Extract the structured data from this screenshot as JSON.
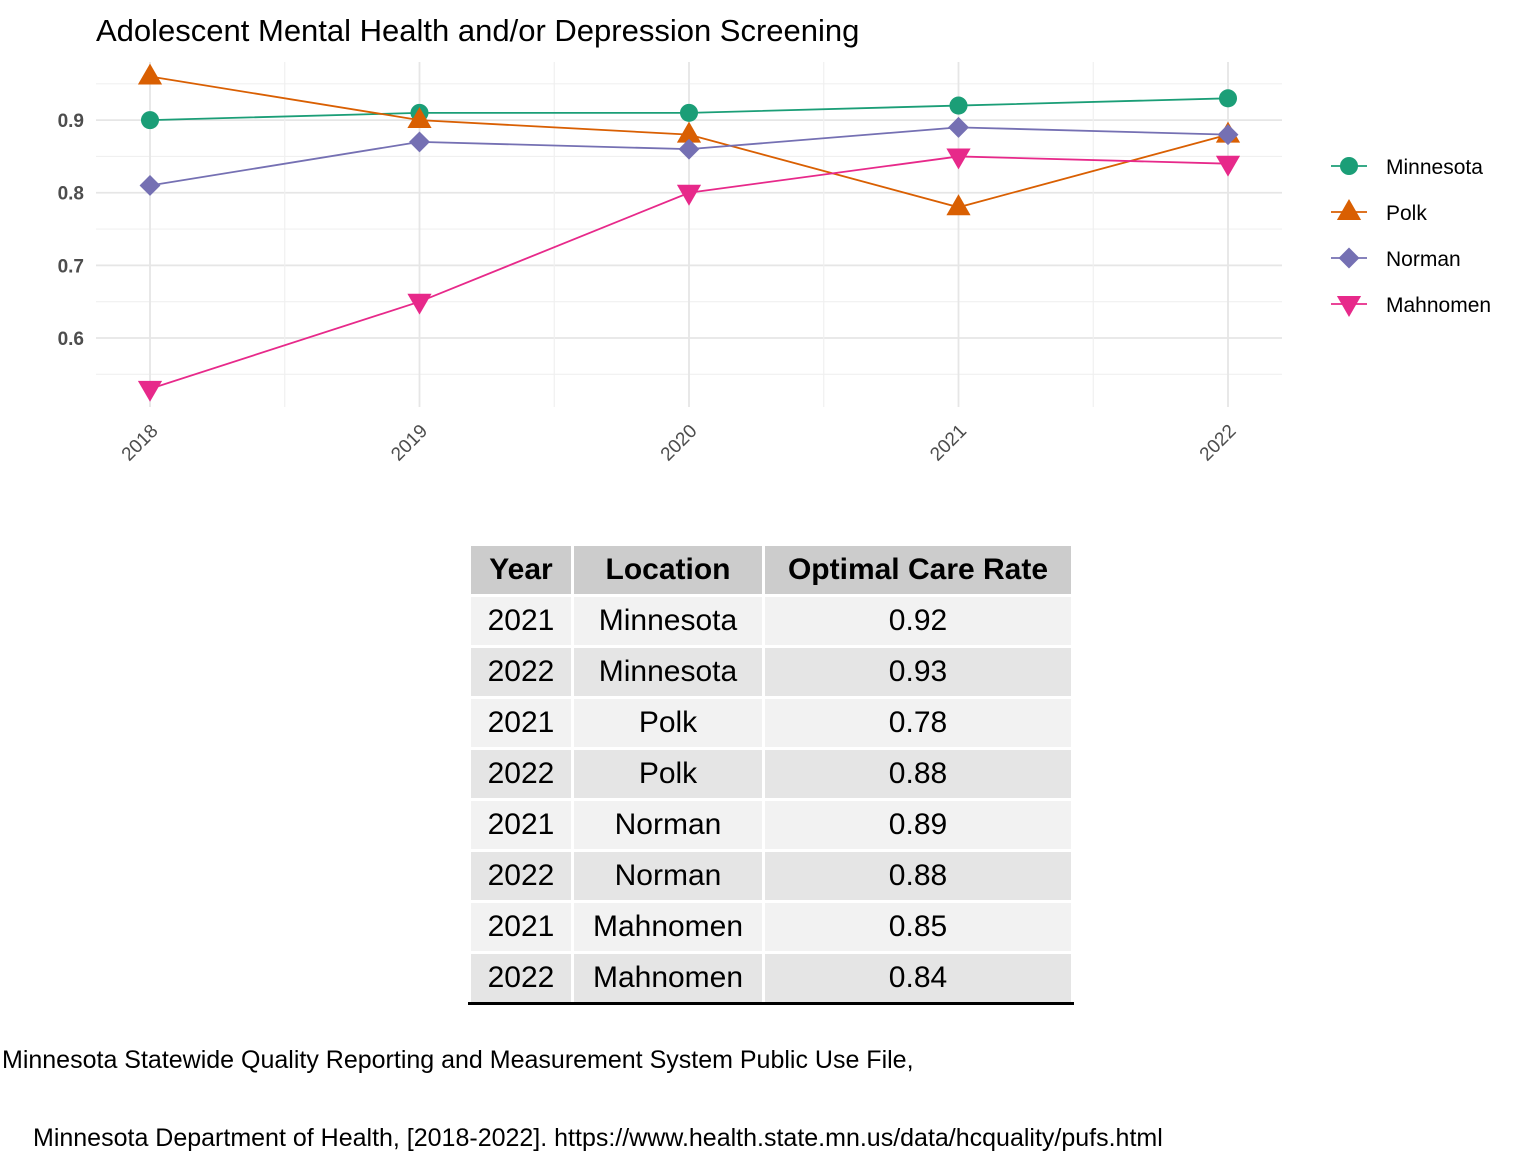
{
  "chart_data": {
    "type": "line",
    "title": "Adolescent Mental Health and/or Depression Screening",
    "xlabel": "",
    "ylabel": "",
    "x": [
      "2018",
      "2019",
      "2020",
      "2021",
      "2022"
    ],
    "ylim": [
      0.505,
      0.98
    ],
    "yticks": [
      0.6,
      0.7,
      0.8,
      0.9
    ],
    "ytick_labels": [
      "0.6",
      "0.7",
      "0.8",
      "0.9"
    ],
    "grid": true,
    "legend_position": "right",
    "series": [
      {
        "name": "Minnesota",
        "color": "#1b9e77",
        "marker": "circle",
        "values": [
          0.9,
          0.91,
          0.91,
          0.92,
          0.93
        ]
      },
      {
        "name": "Polk",
        "color": "#d95f02",
        "marker": "triangle-up",
        "values": [
          0.96,
          0.9,
          0.88,
          0.78,
          0.88
        ]
      },
      {
        "name": "Norman",
        "color": "#7570b3",
        "marker": "diamond",
        "values": [
          0.81,
          0.87,
          0.86,
          0.89,
          0.88
        ]
      },
      {
        "name": "Mahnomen",
        "color": "#e7298a",
        "marker": "triangle-down",
        "values": [
          0.53,
          0.65,
          0.8,
          0.85,
          0.84
        ]
      }
    ]
  },
  "table": {
    "headers": [
      "Year",
      "Location",
      "Optimal Care Rate"
    ],
    "rows": [
      [
        "2021",
        "Minnesota",
        "0.92"
      ],
      [
        "2022",
        "Minnesota",
        "0.93"
      ],
      [
        "2021",
        "Polk",
        "0.78"
      ],
      [
        "2022",
        "Polk",
        "0.88"
      ],
      [
        "2021",
        "Norman",
        "0.89"
      ],
      [
        "2022",
        "Norman",
        "0.88"
      ],
      [
        "2021",
        "Mahnomen",
        "0.85"
      ],
      [
        "2022",
        "Mahnomen",
        "0.84"
      ]
    ]
  },
  "caption": {
    "line1": "Minnesota Statewide Quality Reporting and Measurement System Public Use File,",
    "line2": "Minnesota Department of Health, [2018-2022]. https://www.health.state.mn.us/data/hcquality/pufs.html"
  }
}
